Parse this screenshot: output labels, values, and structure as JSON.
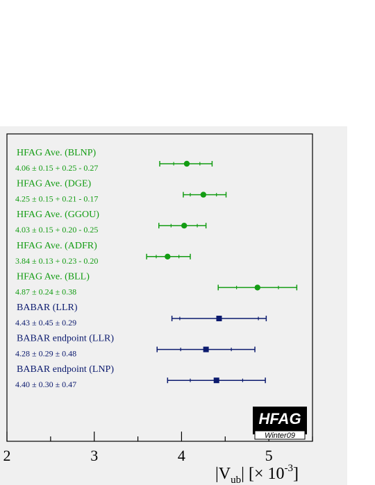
{
  "chart_data": {
    "type": "scatter",
    "xlim": [
      2.0,
      5.5
    ],
    "x_ticks": [
      "2",
      "3",
      "4",
      "5"
    ],
    "axis_title": {
      "prefix": "|V",
      "sub": "ub",
      "suffix": "|  [× 10",
      "sup": "-3",
      "close": "]"
    },
    "colors": {
      "green": "#139c13",
      "navy": "#0b1a6e"
    },
    "entries": [
      {
        "name": "HFAG Ave. (BLNP)",
        "value_text": "4.06 ± 0.15 + 0.25 - 0.27",
        "value": 4.06,
        "stat": [
          0.15,
          0.15
        ],
        "total": [
          0.29,
          0.31
        ],
        "marker": "circle",
        "color": "green"
      },
      {
        "name": "HFAG Ave. (DGE)",
        "value_text": "4.25 ± 0.15 + 0.21 - 0.17",
        "value": 4.25,
        "stat": [
          0.15,
          0.15
        ],
        "total": [
          0.26,
          0.23
        ],
        "marker": "circle",
        "color": "green"
      },
      {
        "name": "HFAG Ave. (GGOU)",
        "value_text": "4.03 ± 0.15 + 0.20 - 0.25",
        "value": 4.03,
        "stat": [
          0.15,
          0.15
        ],
        "total": [
          0.25,
          0.29
        ],
        "marker": "circle",
        "color": "green"
      },
      {
        "name": "HFAG Ave. (ADFR)",
        "value_text": "3.84 ± 0.13 + 0.23 - 0.20",
        "value": 3.84,
        "stat": [
          0.13,
          0.13
        ],
        "total": [
          0.26,
          0.24
        ],
        "marker": "circle",
        "color": "green"
      },
      {
        "name": "HFAG Ave. (BLL)",
        "value_text": "4.87 ± 0.24 ± 0.38",
        "value": 4.87,
        "stat": [
          0.24,
          0.24
        ],
        "total": [
          0.45,
          0.45
        ],
        "marker": "circle",
        "color": "green"
      },
      {
        "name": "BABAR (LLR)",
        "value_text": "4.43 ± 0.45 ± 0.29",
        "value": 4.43,
        "stat": [
          0.45,
          0.45
        ],
        "total": [
          0.54,
          0.54
        ],
        "marker": "square",
        "color": "navy"
      },
      {
        "name": "BABAR endpoint (LLR)",
        "value_text": "4.28 ± 0.29 ± 0.48",
        "value": 4.28,
        "stat": [
          0.29,
          0.29
        ],
        "total": [
          0.56,
          0.56
        ],
        "marker": "square",
        "color": "navy"
      },
      {
        "name": "BABAR endpoint (LNP)",
        "value_text": "4.40 ± 0.30 ± 0.47",
        "value": 4.4,
        "stat": [
          0.3,
          0.3
        ],
        "total": [
          0.56,
          0.56
        ],
        "marker": "square",
        "color": "navy"
      }
    ]
  },
  "logo": {
    "main": "HFAG",
    "sub": "Winter09"
  }
}
